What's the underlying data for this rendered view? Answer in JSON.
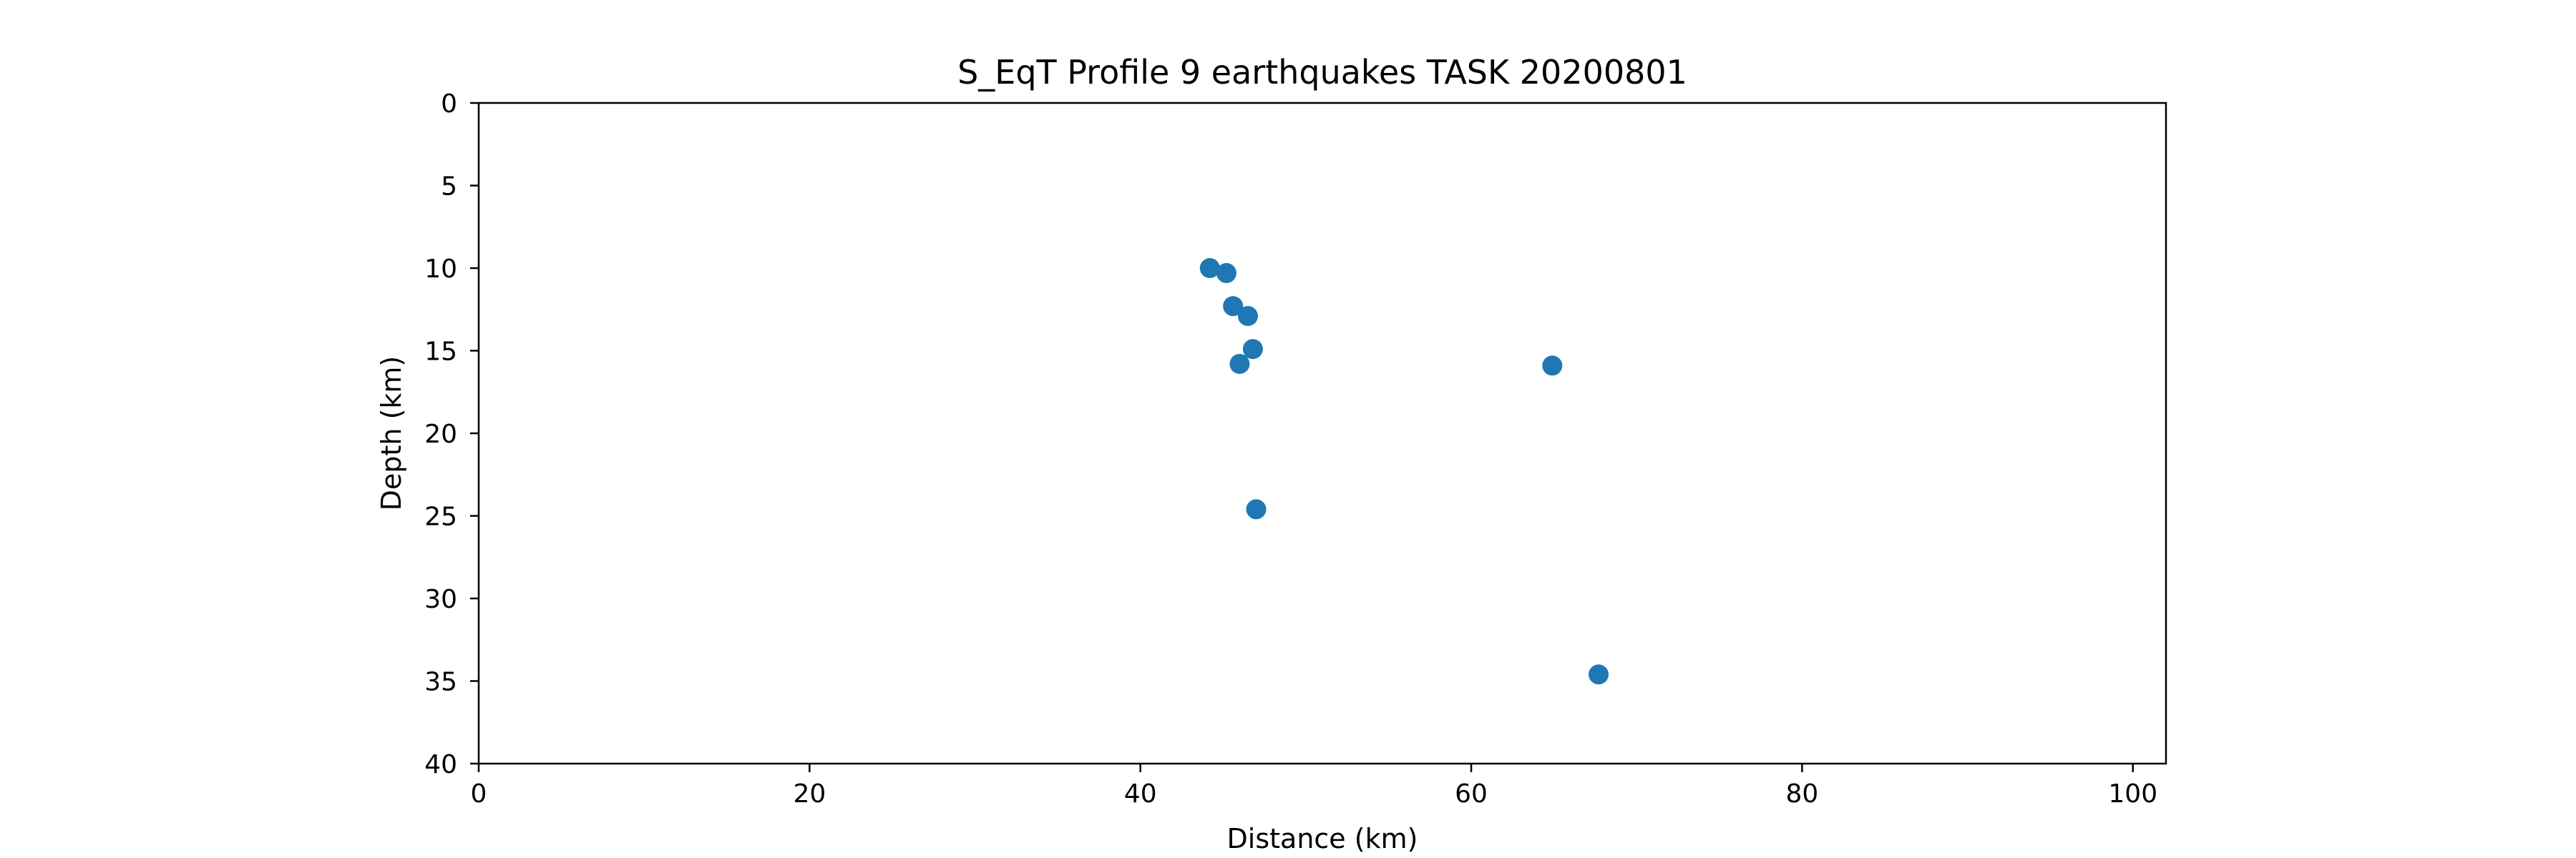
{
  "chart_data": {
    "type": "scatter",
    "title": "S_EqT Profile 9 earthquakes TASK 20200801",
    "xlabel": "Distance (km)",
    "ylabel": "Depth (km)",
    "xlim": [
      0,
      102
    ],
    "ylim": [
      0,
      40
    ],
    "y_inverted": true,
    "xticks": [
      0,
      20,
      40,
      60,
      80,
      100
    ],
    "yticks": [
      0,
      5,
      10,
      15,
      20,
      25,
      30,
      35,
      40
    ],
    "grid": false,
    "legend": "none",
    "marker_color": "#1f77b4",
    "series": [
      {
        "points": [
          {
            "x": 44.2,
            "y": 10.0
          },
          {
            "x": 45.2,
            "y": 10.3
          },
          {
            "x": 45.6,
            "y": 12.3
          },
          {
            "x": 46.5,
            "y": 12.9
          },
          {
            "x": 46.8,
            "y": 14.9
          },
          {
            "x": 46.0,
            "y": 15.8
          },
          {
            "x": 64.9,
            "y": 15.9
          },
          {
            "x": 47.0,
            "y": 24.6
          },
          {
            "x": 67.7,
            "y": 34.6
          }
        ]
      }
    ]
  }
}
